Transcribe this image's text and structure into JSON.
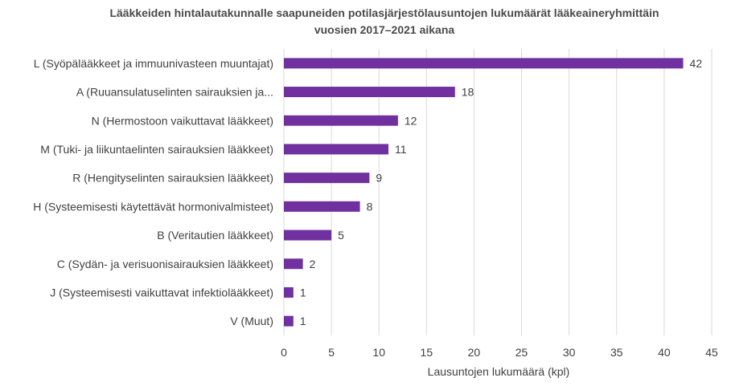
{
  "chart_data": {
    "type": "bar",
    "orientation": "horizontal",
    "title_line1": "Lääkkeiden hintalautakunnalle saapuneiden potilasjärjestölausuntojen lukumäärät lääkeaineryhmittäin",
    "title_line2": "vuosien 2017–2021 aikana",
    "xlabel": "Lausuntojen lukumäärä (kpl)",
    "ylabel": "",
    "xlim": [
      0,
      45
    ],
    "x_ticks": [
      0,
      5,
      10,
      15,
      20,
      25,
      30,
      35,
      40,
      45
    ],
    "grid": "vertical",
    "legend": "none",
    "bar_color": "#7030a0",
    "categories": [
      "L (Syöpälääkkeet ja immuunivasteen muuntajat)",
      "A (Ruuansulatuselinten sairauksien ja...",
      "N (Hermostoon vaikuttavat lääkkeet)",
      "M (Tuki- ja liikuntaelinten sairauksien lääkkeet)",
      "R (Hengityselinten sairauksien lääkkeet)",
      "H (Systeemisesti käytettävät hormonivalmisteet)",
      "B (Veritautien lääkkeet)",
      "C (Sydän- ja verisuonisairauksien lääkkeet)",
      "J (Systeemisesti vaikuttavat infektiolääkkeet)",
      "V (Muut)"
    ],
    "values": [
      42,
      18,
      12,
      11,
      9,
      8,
      5,
      2,
      1,
      1
    ]
  }
}
